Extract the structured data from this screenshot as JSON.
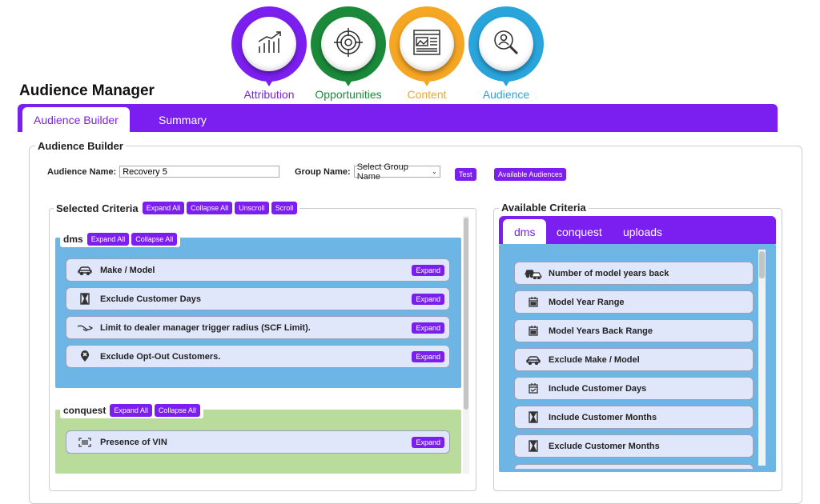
{
  "nav": [
    {
      "label": "Attribution",
      "color": "#7b1ff0",
      "icon": "growth-chart-icon"
    },
    {
      "label": "Opportunities",
      "color": "#1a8a3a",
      "icon": "target-icon"
    },
    {
      "label": "Content",
      "color": "#f5a623",
      "icon": "webpage-content-icon"
    },
    {
      "label": "Audience",
      "color": "#29a5dc",
      "icon": "user-search-icon"
    }
  ],
  "page_title": "Audience Manager",
  "tabs": {
    "builder": "Audience Builder",
    "summary": "Summary"
  },
  "builder": {
    "legend": "Audience Builder",
    "audience_name_label": "Audience Name:",
    "audience_name_value": "Recovery 5",
    "group_name_label": "Group Name:",
    "group_name_value": "Select Group Name",
    "test_button": "Test",
    "available_audiences_button": "Available Audiences"
  },
  "selected": {
    "legend": "Selected Criteria",
    "expand_all": "Expand All",
    "collapse_all": "Collapse All",
    "unscroll": "Unscroll",
    "scroll": "Scroll",
    "groups": [
      {
        "name": "dms",
        "expand_all": "Expand All",
        "collapse_all": "Collapse All",
        "items": [
          {
            "label": "Make / Model",
            "icon": "car-icon",
            "button": "Expand"
          },
          {
            "label": "Exclude Customer Days",
            "icon": "hourglass-icon",
            "button": "Expand"
          },
          {
            "label": "Limit to dealer manager trigger radius (SCF Limit).",
            "icon": "lamp-icon",
            "button": "Expand"
          },
          {
            "label": "Exclude Opt-Out Customers.",
            "icon": "location-x-icon",
            "button": "Expand"
          }
        ]
      },
      {
        "name": "conquest",
        "expand_all": "Expand All",
        "collapse_all": "Collapse All",
        "items": [
          {
            "label": "Presence of VIN",
            "icon": "barcode-icon",
            "button": "Expand"
          }
        ]
      }
    ]
  },
  "available": {
    "legend": "Available Criteria",
    "tabs": [
      "dms",
      "conquest",
      "uploads"
    ],
    "items": [
      {
        "label": "Number of model years back",
        "icon": "cars-icon"
      },
      {
        "label": "Model Year Range",
        "icon": "calendar-icon"
      },
      {
        "label": "Model Years Back Range",
        "icon": "calendar-icon"
      },
      {
        "label": "Exclude Make / Model",
        "icon": "car-icon"
      },
      {
        "label": "Include Customer Days",
        "icon": "calendar-check-icon"
      },
      {
        "label": "Include Customer Months",
        "icon": "hourglass-icon"
      },
      {
        "label": "Exclude Customer Months",
        "icon": "hourglass-icon"
      }
    ]
  },
  "colors": {
    "accent": "#7b1ff0",
    "dms_bg": "#6cb5e4",
    "conquest_bg": "#b9dc9c",
    "available_bg": "#6cb5e4",
    "item_bg": "#e1e7fb"
  }
}
